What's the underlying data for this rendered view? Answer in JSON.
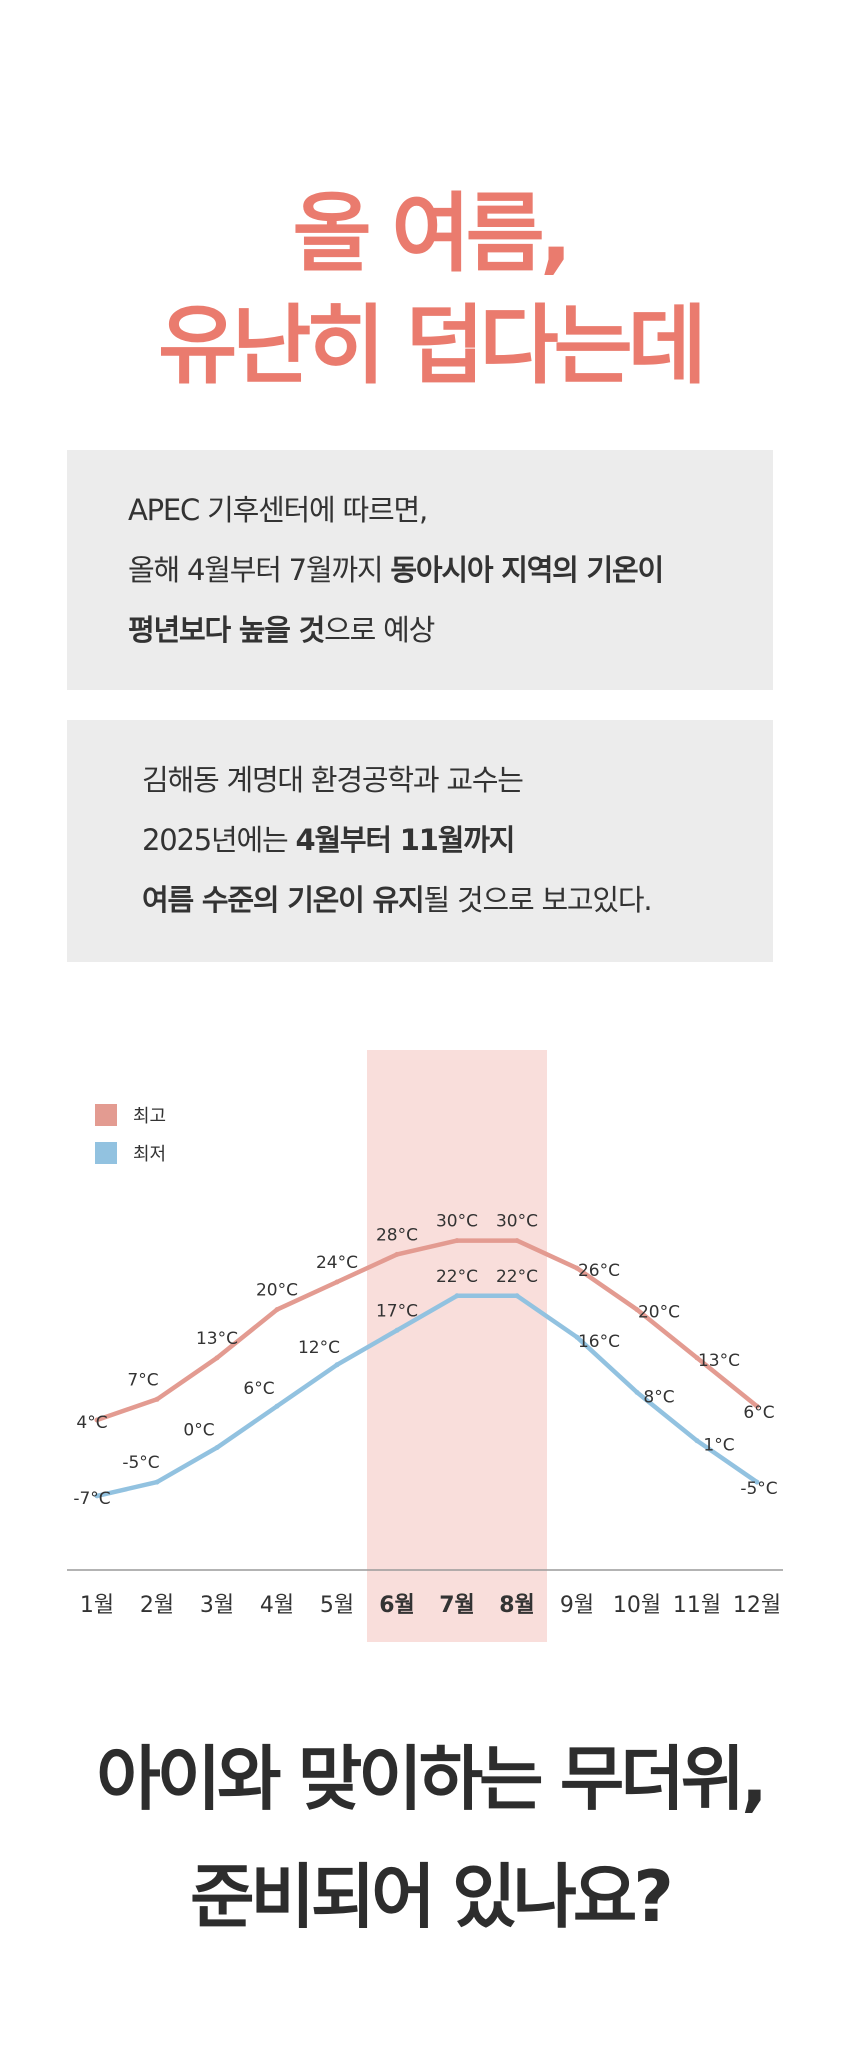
{
  "headline": {
    "line1": "올 여름,",
    "line2": "유난히 덥다는데"
  },
  "box1": {
    "line1": "APEC 기후센터에 따르면,",
    "line2_pre": "올해 4월부터 7월까지 ",
    "line2_bold": "동아시아 지역의 기온이",
    "line3_bold": "평년보다 높을 것",
    "line3_post": "으로 예상"
  },
  "box2": {
    "line1": "김해동 계명대 환경공학과 교수는",
    "line2_pre": "2025년에는 ",
    "line2_bold": "4월부터 11월까지",
    "line3_bold": "여름 수준의 기온이 유지",
    "line3_post": "될 것으로 보고있다."
  },
  "closing": {
    "line1": "아이와 맞이하는 무더위,",
    "line2": "준비되어 있나요?"
  },
  "colors": {
    "headline": "#ea7b6e",
    "high": "#e39b91",
    "low": "#92c2e0",
    "highlight_band": "#f9dedb",
    "box_bg": "#ececec",
    "text": "#333333"
  },
  "chart_data": {
    "type": "line",
    "categories": [
      "1월",
      "2월",
      "3월",
      "4월",
      "5월",
      "6월",
      "7월",
      "8월",
      "9월",
      "10월",
      "11월",
      "12월"
    ],
    "highlighted_categories": [
      "6월",
      "7월",
      "8월"
    ],
    "series": [
      {
        "name": "최고",
        "values": [
          4,
          7,
          13,
          20,
          24,
          28,
          30,
          30,
          26,
          20,
          13,
          6
        ],
        "labels": [
          "4°C",
          "7°C",
          "13°C",
          "20°C",
          "24°C",
          "28°C",
          "30°C",
          "30°C",
          "26°C",
          "20°C",
          "13°C",
          "6°C"
        ]
      },
      {
        "name": "최저",
        "values": [
          -7,
          -5,
          0,
          6,
          12,
          17,
          22,
          22,
          16,
          8,
          1,
          -5
        ],
        "labels": [
          "-7°C",
          "-5°C",
          "0°C",
          "6°C",
          "12°C",
          "17°C",
          "22°C",
          "22°C",
          "16°C",
          "8°C",
          "1°C",
          "-5°C"
        ]
      }
    ],
    "legend_position": "top-left",
    "grid": false
  }
}
